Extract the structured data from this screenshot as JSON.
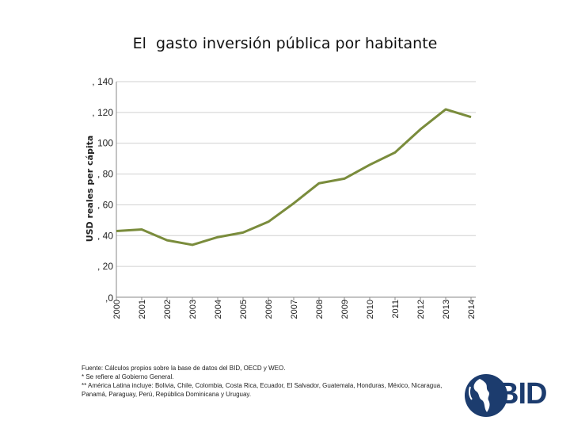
{
  "chart_data": {
    "type": "line",
    "title": "El  gasto inversión pública por habitante",
    "ylabel": "USD reales per cápita",
    "xlabel": "",
    "ylim": [
      0,
      140
    ],
    "y_ticks": [
      ",0",
      ", 20",
      ", 40",
      ", 60",
      ", 80",
      "100",
      ", 120",
      ", 140"
    ],
    "y_tick_values": [
      0,
      20,
      40,
      60,
      80,
      100,
      120,
      140
    ],
    "grid": true,
    "categories": [
      "2000",
      "2001",
      "2002",
      "2003",
      "2004",
      "2005",
      "2006",
      "2007",
      "2008",
      "2009",
      "2010",
      "2011",
      "2012",
      "2013",
      "2014"
    ],
    "series": [
      {
        "values": [
          43,
          44,
          37,
          34,
          39,
          42,
          49,
          61,
          74,
          77,
          86,
          94,
          109,
          122,
          117
        ],
        "color": "#7a8c3c"
      }
    ]
  },
  "footnotes": [
    "Fuente: Cálculos propios sobre la base de datos del BID, OECD y WEO.",
    "* Se refiere al Gobierno General.",
    "** América Latina incluye: Bolivia, Chile, Colombia, Costa Rica, Ecuador, El Salvador, Guatemala, Honduras, México, Nicaragua, Panamá, Paraguay, Perú, República Dominicana y Uruguay."
  ],
  "logo": {
    "text": "BID",
    "color": "#1c3c6e",
    "icon": "americas-globe-icon"
  }
}
